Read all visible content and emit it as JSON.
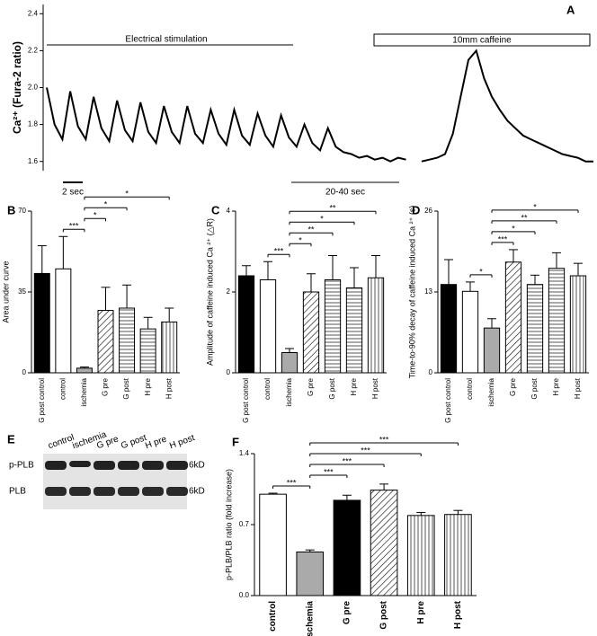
{
  "chart_data": [
    {
      "type": "line",
      "panel": "A",
      "ylabel": "Ca²⁺ (Fura-2 ratio)",
      "ylim": [
        1.55,
        2.45
      ],
      "yticks": [
        1.6,
        1.8,
        {
          "value": 2,
          "label": "2.0"
        },
        2.2,
        2.4
      ],
      "annotations": [
        "Electrical stimulation",
        "10mm caffeine",
        "2 sec",
        "20-40 sec"
      ],
      "color": "#000000",
      "values": [
        2.0,
        1.8,
        1.72,
        1.98,
        1.79,
        1.72,
        1.95,
        1.78,
        1.71,
        1.93,
        1.77,
        1.71,
        1.92,
        1.76,
        1.7,
        1.9,
        1.76,
        1.7,
        1.9,
        1.75,
        1.7,
        1.88,
        1.75,
        1.69,
        1.88,
        1.74,
        1.69,
        1.86,
        1.74,
        1.68,
        1.85,
        1.73,
        1.68,
        1.8,
        1.7,
        1.66,
        1.78,
        1.68,
        1.65,
        1.64,
        1.62,
        1.63,
        1.61,
        1.62,
        1.6,
        1.62,
        1.61,
        null,
        1.6,
        1.61,
        1.62,
        1.64,
        1.75,
        1.95,
        2.15,
        2.2,
        2.05,
        1.95,
        1.88,
        1.82,
        1.78,
        1.74,
        1.72,
        1.7,
        1.68,
        1.66,
        1.64,
        1.63,
        1.62,
        1.6,
        1.6
      ]
    },
    {
      "type": "bar",
      "panel": "B",
      "ylabel": "Area under curve",
      "categories": [
        "G post control",
        "control",
        "ischemia",
        "G pre",
        "G post",
        "H pre",
        "H post"
      ],
      "values": [
        43,
        45,
        2,
        27,
        28,
        19,
        22
      ],
      "errors": [
        12,
        14,
        0.5,
        10,
        10,
        5,
        6
      ],
      "fills": [
        "black",
        "white",
        "gray",
        "diagonal",
        "horizontal",
        "horizontal",
        "vertical"
      ],
      "ylim": [
        0,
        70
      ],
      "yticks": [
        0,
        35,
        70
      ],
      "significance": [
        {
          "from": 1,
          "to": 2,
          "label": "***"
        },
        {
          "from": 2,
          "to": 3,
          "label": "*"
        },
        {
          "from": 2,
          "to": 4,
          "label": "*"
        },
        {
          "from": 2,
          "to": 6,
          "label": "*"
        }
      ]
    },
    {
      "type": "bar",
      "panel": "C",
      "ylabel": "Amplitude of caffeine induced Ca ²⁺ (△R)",
      "categories": [
        "G post control",
        "control",
        "ischemia",
        "G pre",
        "G post",
        "H pre",
        "H post"
      ],
      "values": [
        2.4,
        2.3,
        0.5,
        2.0,
        2.3,
        2.1,
        2.35
      ],
      "errors": [
        0.25,
        0.45,
        0.1,
        0.45,
        0.6,
        0.5,
        0.55
      ],
      "fills": [
        "black",
        "white",
        "gray",
        "diagonal",
        "horizontal",
        "horizontal",
        "vertical"
      ],
      "ylim": [
        0,
        4
      ],
      "yticks": [
        0,
        2,
        4
      ],
      "significance": [
        {
          "from": 1,
          "to": 2,
          "label": "***"
        },
        {
          "from": 2,
          "to": 3,
          "label": "*"
        },
        {
          "from": 2,
          "to": 4,
          "label": "**"
        },
        {
          "from": 2,
          "to": 5,
          "label": "*"
        },
        {
          "from": 2,
          "to": 6,
          "label": "**"
        }
      ]
    },
    {
      "type": "bar",
      "panel": "D",
      "ylabel": "Time-to-90% decay of caffeine induced Ca ²⁺ (s)",
      "categories": [
        "G post control",
        "control",
        "ischemia",
        "G pre",
        "G post",
        "H pre",
        "H post"
      ],
      "values": [
        14.2,
        13.1,
        7.2,
        17.8,
        14.2,
        16.8,
        15.6
      ],
      "errors": [
        4,
        1.5,
        1.5,
        2,
        1.5,
        2.5,
        2
      ],
      "fills": [
        "black",
        "white",
        "gray",
        "diagonal",
        "horizontal",
        "horizontal",
        "vertical"
      ],
      "ylim": [
        0,
        26
      ],
      "yticks": [
        0,
        13,
        26
      ],
      "significance": [
        {
          "from": 1,
          "to": 2,
          "label": "*"
        },
        {
          "from": 2,
          "to": 3,
          "label": "***"
        },
        {
          "from": 2,
          "to": 4,
          "label": "*"
        },
        {
          "from": 2,
          "to": 5,
          "label": "**"
        },
        {
          "from": 2,
          "to": 6,
          "label": "*"
        }
      ]
    },
    {
      "type": "bar",
      "panel": "F",
      "ylabel": "p-PLB/PLB ratio (fold increase)",
      "categories": [
        "control",
        "ischemia",
        "G pre",
        "G post",
        "H pre",
        "H post"
      ],
      "values": [
        1.0,
        0.43,
        0.94,
        1.04,
        0.79,
        0.8
      ],
      "errors": [
        0.01,
        0.02,
        0.05,
        0.06,
        0.03,
        0.04
      ],
      "fills": [
        "white",
        "gray",
        "black",
        "diagonal",
        "vertical",
        "vertical"
      ],
      "ylim": [
        0,
        1.4
      ],
      "yticks": [
        {
          "value": 0,
          "label": "0.0"
        },
        0.7,
        1.4
      ],
      "significance": [
        {
          "from": 0,
          "to": 1,
          "label": "***"
        },
        {
          "from": 1,
          "to": 2,
          "label": "***"
        },
        {
          "from": 1,
          "to": 3,
          "label": "***"
        },
        {
          "from": 1,
          "to": 4,
          "label": "***"
        },
        {
          "from": 1,
          "to": 5,
          "label": "***"
        }
      ]
    }
  ],
  "blot": {
    "panel": "E",
    "lanes": [
      "control",
      "ischemia",
      "G pre",
      "G post",
      "H pre",
      "H post"
    ],
    "rows": [
      "p-PLB",
      "PLB"
    ],
    "size_labels": [
      "6kD",
      "6kD"
    ]
  }
}
